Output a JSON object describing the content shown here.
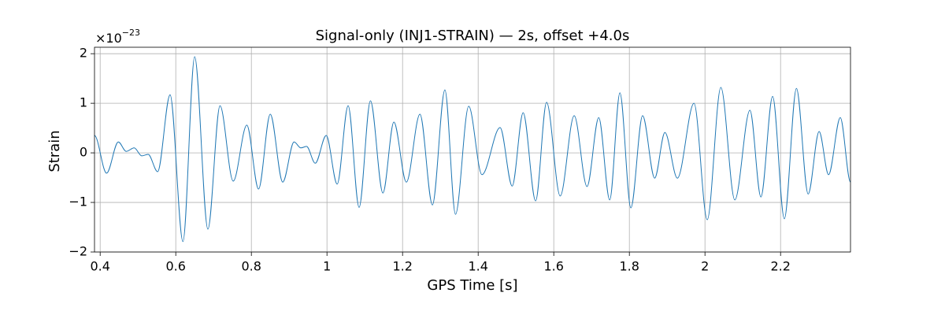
{
  "chart_data": {
    "type": "line",
    "title": "Signal-only (INJ1-STRAIN) — 2s, offset +4.0s",
    "x_label": "GPS Time [s]",
    "y_label": "Strain",
    "y_offset_text": {
      "base": "×10",
      "exponent": "−23"
    },
    "xlim": [
      0.385,
      2.385
    ],
    "ylim": [
      -2,
      2.13
    ],
    "xticks": [
      0.4,
      0.6,
      0.8,
      1,
      1.2,
      1.4,
      1.6,
      1.8,
      2,
      2.2
    ],
    "yticks": [
      {
        "value": -2,
        "label": "−2"
      },
      {
        "value": -1,
        "label": "−1"
      },
      0,
      1,
      2
    ],
    "grid": true,
    "series": [
      {
        "color": "#1f77b4",
        "x": [
          0.385,
          0.417,
          0.448,
          0.469,
          0.49,
          0.51,
          0.527,
          0.552,
          0.585,
          0.619,
          0.65,
          0.685,
          0.717,
          0.752,
          0.788,
          0.819,
          0.85,
          0.883,
          0.913,
          0.931,
          0.946,
          0.969,
          0.998,
          1.027,
          1.056,
          1.085,
          1.115,
          1.148,
          1.177,
          1.21,
          1.246,
          1.279,
          1.312,
          1.34,
          1.375,
          1.41,
          1.458,
          1.49,
          1.519,
          1.552,
          1.581,
          1.617,
          1.654,
          1.688,
          1.719,
          1.748,
          1.775,
          1.804,
          1.835,
          1.867,
          1.894,
          1.927,
          1.971,
          2.006,
          2.042,
          2.079,
          2.119,
          2.148,
          2.179,
          2.21,
          2.242,
          2.273,
          2.302,
          2.327,
          2.358,
          2.385
        ],
        "values": [
          0.35,
          -0.41,
          0.22,
          0.03,
          0.1,
          -0.06,
          -0.03,
          -0.38,
          1.17,
          -1.79,
          1.94,
          -1.54,
          0.95,
          -0.57,
          0.56,
          -0.73,
          0.78,
          -0.59,
          0.22,
          0.1,
          0.13,
          -0.21,
          0.35,
          -0.63,
          0.95,
          -1.1,
          1.05,
          -0.81,
          0.62,
          -0.59,
          0.78,
          -1.05,
          1.27,
          -1.24,
          0.94,
          -0.44,
          0.51,
          -0.67,
          0.81,
          -0.97,
          1.02,
          -0.87,
          0.75,
          -0.68,
          0.71,
          -0.95,
          1.21,
          -1.11,
          0.75,
          -0.51,
          0.41,
          -0.51,
          1.0,
          -1.35,
          1.32,
          -0.95,
          0.86,
          -0.89,
          1.14,
          -1.33,
          1.3,
          -0.83,
          0.43,
          -0.44,
          0.71,
          -0.59
        ]
      }
    ]
  }
}
